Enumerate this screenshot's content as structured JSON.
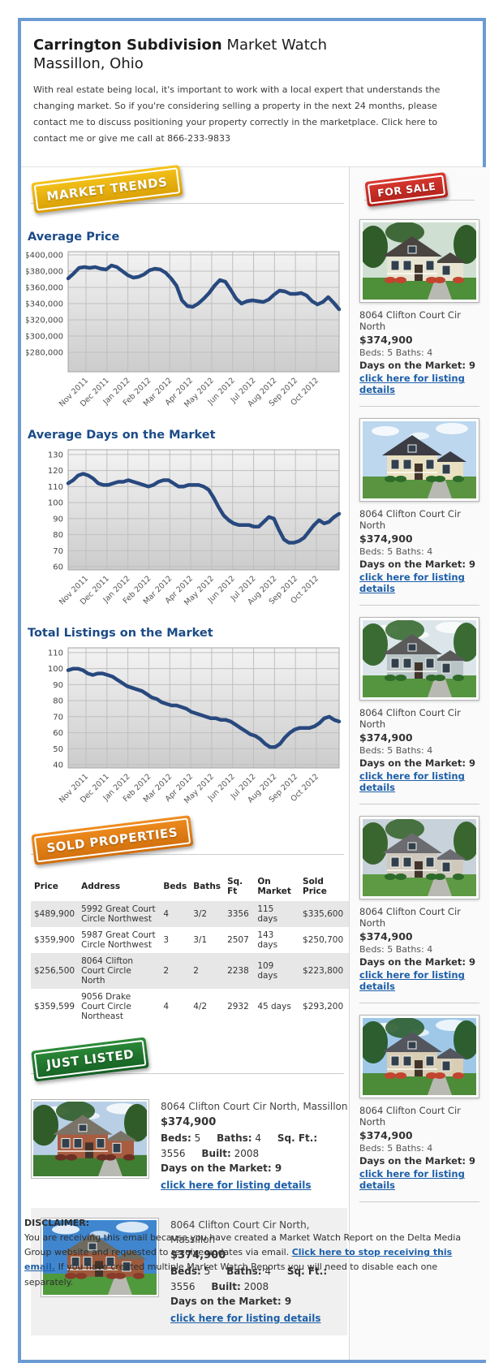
{
  "header": {
    "title_bold": "Carrington Subdivision",
    "title_regular": " Market Watch",
    "subtitle": "Massillon, Ohio",
    "intro": "With real estate being local, it's important to work with a local expert that understands the changing market. So if you're considering selling a property in the next 24 months, please contact me to discuss positioning your property correctly in the marketplace. Click here to contact me or give me call at 866-233-9833"
  },
  "badges": {
    "market_trends": "MARKET TRENDS",
    "for_sale": "FOR SALE",
    "sold_properties": "SOLD PROPERTIES",
    "just_listed": "JUST LISTED"
  },
  "colors": {
    "frame_border": "#6b9bd2",
    "heading_blue": "#1b4b87",
    "link_blue": "#1d5fa8",
    "chart_line": "#28497e"
  },
  "chart_data": [
    {
      "type": "line",
      "title": "Average Price",
      "x_categories": [
        "Nov 2011",
        "Dec 2011",
        "Jan 2012",
        "Feb 2012",
        "Mar 2012",
        "Apr 2012",
        "May 2012",
        "Jun 2012",
        "Jul 2012",
        "Aug 2012",
        "Sep 2012",
        "Oct 2012"
      ],
      "values": [
        371000,
        377000,
        384000,
        385000,
        384000,
        385000,
        383000,
        382000,
        387000,
        385000,
        380000,
        375000,
        372000,
        373000,
        376000,
        381000,
        383000,
        382000,
        378000,
        371000,
        362000,
        344000,
        337000,
        336000,
        340000,
        346000,
        353000,
        362000,
        369000,
        367000,
        357000,
        346000,
        340000,
        343000,
        344000,
        343000,
        342000,
        345000,
        351000,
        356000,
        355000,
        352000,
        352000,
        353000,
        350000,
        343000,
        339000,
        342000,
        348000,
        341000,
        333000
      ],
      "y_ticks": [
        400000,
        380000,
        360000,
        340000,
        320000,
        300000,
        280000
      ],
      "y_tick_labels": [
        "$400,000",
        "$380,000",
        "$360,000",
        "$340,000",
        "$320,000",
        "$300,000",
        "$280,000"
      ],
      "ylim": [
        256000,
        404000
      ],
      "grid": true,
      "legend": "none",
      "line_color": "#28497e"
    },
    {
      "type": "line",
      "title": "Average Days on the Market",
      "x_categories": [
        "Nov 2011",
        "Dec 2011",
        "Jan 2012",
        "Feb 2012",
        "Mar 2012",
        "Apr 2012",
        "May 2012",
        "Jun 2012",
        "Jul 2012",
        "Aug 2012",
        "Sep 2012",
        "Oct 2012"
      ],
      "values": [
        112,
        114,
        117,
        118,
        117,
        115,
        112,
        111,
        111,
        112,
        113,
        113,
        114,
        113,
        112,
        111,
        110,
        111,
        113,
        114,
        114,
        112,
        110,
        110,
        111,
        111,
        111,
        110,
        108,
        103,
        97,
        92,
        89,
        87,
        86,
        86,
        86,
        85,
        85,
        88,
        91,
        90,
        83,
        77,
        75,
        75,
        76,
        78,
        82,
        86,
        89,
        87,
        88,
        91,
        93
      ],
      "y_ticks": [
        130,
        120,
        110,
        100,
        90,
        80,
        70,
        60
      ],
      "y_tick_labels": [
        "130",
        "120",
        "110",
        "100",
        "90",
        "80",
        "70",
        "60"
      ],
      "ylim": [
        58,
        133
      ],
      "grid": true,
      "legend": "none",
      "line_color": "#28497e"
    },
    {
      "type": "line",
      "title": "Total Listings on the Market",
      "x_categories": [
        "Nov 2011",
        "Dec 2011",
        "Jan 2012",
        "Feb 2012",
        "Mar 2012",
        "Apr 2012",
        "May 2012",
        "Jun 2012",
        "Jul 2012",
        "Aug 2012",
        "Sep 2012",
        "Oct 2012"
      ],
      "values": [
        99,
        100,
        100,
        99,
        97,
        96,
        97,
        97,
        96,
        95,
        93,
        91,
        89,
        88,
        87,
        86,
        84,
        82,
        81,
        79,
        78,
        77,
        77,
        76,
        75,
        73,
        72,
        71,
        70,
        69,
        69,
        68,
        68,
        67,
        65,
        63,
        61,
        59,
        58,
        56,
        53,
        51,
        51,
        53,
        57,
        60,
        62,
        63,
        63,
        63,
        64,
        66,
        69,
        70,
        68,
        67
      ],
      "y_ticks": [
        110,
        100,
        90,
        80,
        70,
        60,
        50,
        40
      ],
      "y_tick_labels": [
        "110",
        "100",
        "90",
        "80",
        "70",
        "60",
        "50",
        "40"
      ],
      "ylim": [
        38,
        113
      ],
      "grid": true,
      "legend": "none",
      "line_color": "#28497e"
    }
  ],
  "for_sale": {
    "listings": [
      {
        "address": "8064 Clifton Court Cir North",
        "price": "$374,900",
        "beds_baths": "Beds: 5 Baths: 4",
        "days_on_market": "Days on the Market: 9",
        "details_link": "click here for listing details"
      },
      {
        "address": "8064 Clifton Court Cir North",
        "price": "$374,900",
        "beds_baths": "Beds: 5 Baths: 4",
        "days_on_market": "Days on the Market: 9",
        "details_link": "click here for listing details"
      },
      {
        "address": "8064 Clifton Court Cir North",
        "price": "$374,900",
        "beds_baths": "Beds: 5 Baths: 4",
        "days_on_market": "Days on the Market: 9",
        "details_link": "click here for listing details"
      },
      {
        "address": "8064 Clifton Court Cir North",
        "price": "$374,900",
        "beds_baths": "Beds: 5 Baths: 4",
        "days_on_market": "Days on the Market: 9",
        "details_link": "click here for listing details"
      },
      {
        "address": "8064 Clifton Court Cir North",
        "price": "$374,900",
        "beds_baths": "Beds: 5 Baths: 4",
        "days_on_market": "Days on the Market: 9",
        "details_link": "click here for listing details"
      }
    ]
  },
  "sold_properties": {
    "headers": [
      "Price",
      "Address",
      "Beds",
      "Baths",
      "Sq. Ft",
      "On Market",
      "Sold Price"
    ],
    "rows": [
      [
        "$489,900",
        "5992 Great Court Circle Northwest",
        "4",
        "3/2",
        "3356",
        "115 days",
        "$335,600"
      ],
      [
        "$359,900",
        "5987 Great Court Circle Northwest",
        "3",
        "3/1",
        "2507",
        "143 days",
        "$250,700"
      ],
      [
        "$256,500",
        "8064 Clifton Court Circle North",
        "2",
        "2",
        "2238",
        "109 days",
        "$223,800"
      ],
      [
        "$359,599",
        "9056 Drake Court Circle Northeast",
        "4",
        "4/2",
        "2932",
        "45 days",
        "$293,200"
      ]
    ]
  },
  "just_listed": {
    "items": [
      {
        "address": "8064 Clifton Court Cir North, Massillon",
        "price": "$374,900",
        "specs": [
          {
            "label": "Beds:",
            "value": "5"
          },
          {
            "label": "Baths:",
            "value": "4"
          },
          {
            "label": "Sq. Ft.:",
            "value": "3556"
          },
          {
            "label": "Built:",
            "value": "2008"
          }
        ],
        "days_on_market": "Days on the Market: 9",
        "details_link": "click here for listing details"
      },
      {
        "address": "8064 Clifton Court Cir North, Massillon",
        "price": "$374,900",
        "specs": [
          {
            "label": "Beds:",
            "value": "5"
          },
          {
            "label": "Baths:",
            "value": "4"
          },
          {
            "label": "Sq. Ft.:",
            "value": "3556"
          },
          {
            "label": "Built:",
            "value": "2008"
          }
        ],
        "days_on_market": "Days on the Market: 9",
        "details_link": "click here for listing details"
      }
    ]
  },
  "disclaimer": {
    "heading": "DISCLAIMER:",
    "text_before": "You are receiving this email because you have created a Market Watch Report on the Delta Media Group website and requested to receive updates via email. ",
    "link": "Click here to stop receiving this email.",
    "text_after": " If you have created multiple Market Watch Reports you will need to disable each one separately."
  },
  "photos": [
    {
      "sky": "#cfe0d2",
      "lawn": "#4e8f3a",
      "wall": "#e8e4d2",
      "roof": "#4a4440",
      "tree": "#2f5c28",
      "trees": true,
      "clouds": false,
      "bush": "#c2452f"
    },
    {
      "sky": "#bcd7ee",
      "lawn": "#5a9440",
      "wall": "#e9e0c0",
      "roof": "#3c3c44",
      "tree": "#3a6b33",
      "trees": false,
      "clouds": true,
      "bush": "#2e6b2a"
    },
    {
      "sky": "#dce6ea",
      "lawn": "#56953f",
      "wall": "#b9c4c6",
      "roof": "#5a5a5a",
      "tree": "#3a6b33",
      "trees": true,
      "clouds": true,
      "bush": "#2e6b2a"
    },
    {
      "sky": "#c8d2da",
      "lawn": "#5d9a43",
      "wall": "#cfc9bd",
      "roof": "#6b6b70",
      "tree": "#39662f",
      "trees": true,
      "clouds": false,
      "bush": "#2e6b2a"
    },
    {
      "sky": "#9fc8e8",
      "lawn": "#4c8c38",
      "wall": "#d9cdb4",
      "roof": "#53565e",
      "tree": "#2c5e30",
      "trees": true,
      "clouds": true,
      "bush": "#c2452f"
    },
    {
      "sky": "#b8cfe6",
      "lawn": "#3f7d33",
      "wall": "#a85c40",
      "roof": "#7a7468",
      "tree": "#2f5c28",
      "trees": true,
      "clouds": true,
      "bush": "#6e2f24"
    },
    {
      "sky": "#3f86cf",
      "lawn": "#4f9a3c",
      "wall": "#9e5a3c",
      "roof": "#6e6a60",
      "tree": "#2c5e30",
      "trees": false,
      "clouds": true,
      "bush": "#8a3b2a"
    }
  ]
}
